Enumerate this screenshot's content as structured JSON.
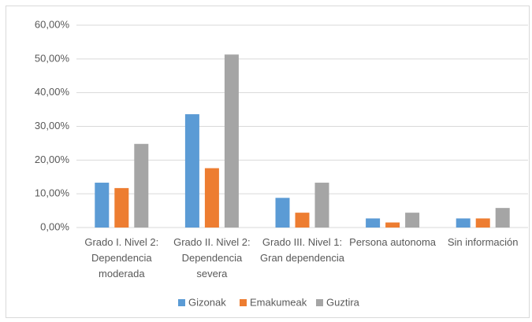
{
  "chart_data": {
    "type": "bar",
    "categories": [
      "Grado I. Nivel 2: Dependencia moderada",
      "Grado II. Nivel 2: Dependencia severa",
      "Grado III. Nivel 1: Gran dependencia",
      "Persona autonoma",
      "Sin información"
    ],
    "series": [
      {
        "name": "Gizonak",
        "color": "#5b9bd5",
        "values": [
          13.3,
          33.6,
          8.8,
          2.7,
          2.7
        ]
      },
      {
        "name": "Emakumeak",
        "color": "#ed7d31",
        "values": [
          11.7,
          17.6,
          4.4,
          1.5,
          2.7
        ]
      },
      {
        "name": "Guztira",
        "color": "#a5a5a5",
        "values": [
          24.8,
          51.3,
          13.3,
          4.4,
          5.8
        ]
      }
    ],
    "ylim": [
      0,
      60
    ],
    "yticks": [
      {
        "value": 0,
        "label": "0,00%"
      },
      {
        "value": 10,
        "label": "10,00%"
      },
      {
        "value": 20,
        "label": "20,00%"
      },
      {
        "value": 30,
        "label": "30,00%"
      },
      {
        "value": 40,
        "label": "40,00%"
      },
      {
        "value": 50,
        "label": "50,00%"
      },
      {
        "value": 60,
        "label": "60,00%"
      }
    ],
    "grid": true,
    "legend": "bottom"
  }
}
